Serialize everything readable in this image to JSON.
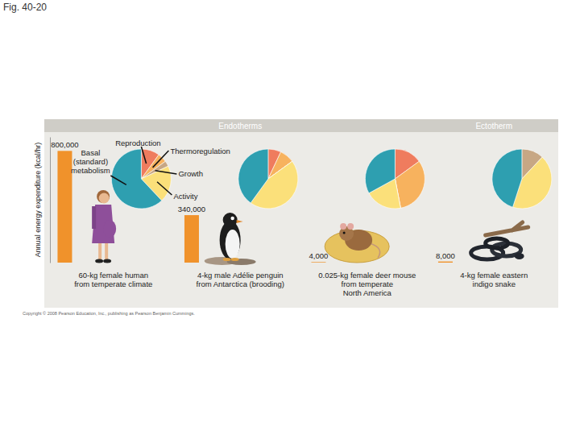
{
  "chart_data": {
    "type": "bar",
    "title": "Fig. 40-20",
    "y_label": "Annual energy expenditure (kcal/hr)",
    "footnote": "Copyright © 2008 Pearson Education, Inc., publishing as Pearson Benjamin Cummings.",
    "categories": [
      "60-kg female human\nfrom temperate climate",
      "4-kg male Adélie penguin\nfrom Antarctica (brooding)",
      "0.025-kg female deer mouse\nfrom temperate\nNorth America",
      "4-kg female eastern\nindigo snake"
    ],
    "values": [
      800000,
      340000,
      4000,
      8000
    ],
    "value_labels": [
      "800,000",
      "340,000",
      "4,000",
      "8,000"
    ],
    "data_labels": true,
    "color": "#f0922b",
    "ylim": [
      0,
      900000
    ],
    "tick_labels": "x",
    "groups": [
      {
        "name": "Endotherms",
        "categories": [
          0,
          1,
          2
        ]
      },
      {
        "name": "Ectotherm",
        "categories": [
          3
        ]
      }
    ],
    "pies": {
      "type": "pie",
      "series": [
        {
          "name": "Reproduction",
          "color": "#ef7c5e",
          "values": [
            10,
            7,
            15,
            0
          ]
        },
        {
          "name": "Thermoregulation",
          "color": "#f7b25e",
          "values": [
            5,
            8,
            32,
            0
          ]
        },
        {
          "name": "Growth",
          "color": "#c7a784",
          "values": [
            3,
            0,
            0,
            12
          ]
        },
        {
          "name": "Activity",
          "color": "#fbe07a",
          "values": [
            20,
            45,
            20,
            43
          ]
        },
        {
          "name": "Basal\n(standard)\nmetabolism",
          "color": "#2e9fb0",
          "values": [
            62,
            40,
            33,
            45
          ]
        }
      ]
    }
  }
}
